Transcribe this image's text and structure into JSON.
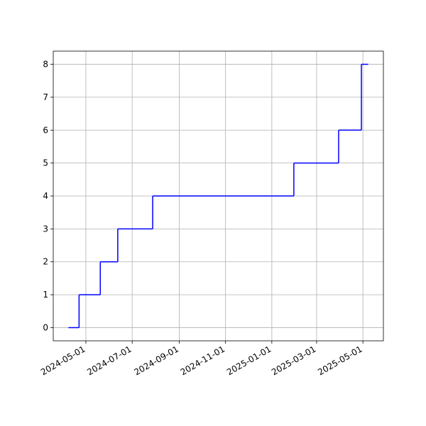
{
  "chart_data": {
    "type": "line",
    "drawstyle": "steps-post",
    "x": [
      "2024-04-08",
      "2024-04-22",
      "2024-05-20",
      "2024-06-12",
      "2024-07-28",
      "2025-01-30",
      "2025-03-30",
      "2025-04-29",
      "2025-05-08"
    ],
    "series": [
      {
        "color": "#0000ff",
        "values": [
          0,
          1,
          2,
          3,
          4,
          5,
          6,
          8,
          8
        ]
      }
    ],
    "xlim": [
      "2024-03-19",
      "2025-05-28"
    ],
    "xticks": [
      "2024-05-01",
      "2024-07-01",
      "2024-09-01",
      "2024-11-01",
      "2025-01-01",
      "2025-03-01",
      "2025-05-01"
    ],
    "ylim": [
      -0.4,
      8.4
    ],
    "yticks": [
      0,
      1,
      2,
      3,
      4,
      5,
      6,
      7,
      8
    ],
    "grid": true
  }
}
